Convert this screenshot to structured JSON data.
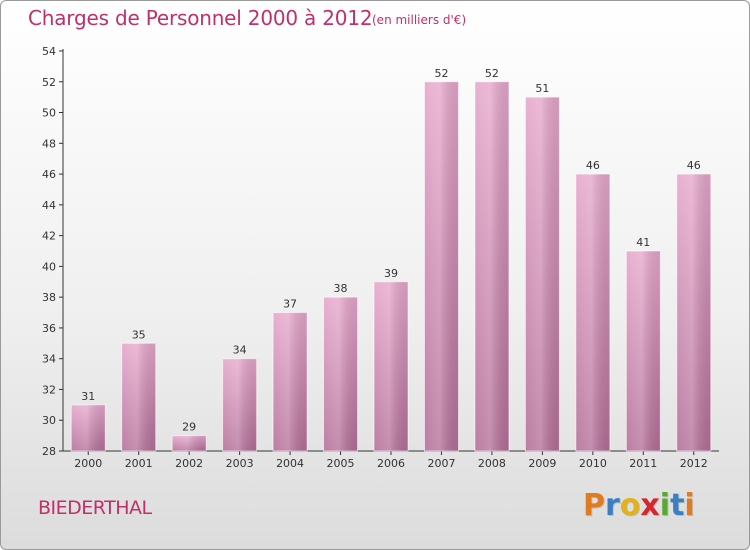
{
  "header": {
    "title": "Charges de Personnel 2000 à 2012",
    "unit": "(en milliers d'€)"
  },
  "footer": {
    "place": "BIEDERTHAL",
    "brand": "Proxiti",
    "brand_colors": [
      "#e07b1f",
      "#3a7fc4",
      "#e2b21c",
      "#d8262e",
      "#5aa832",
      "#3a7fc4",
      "#e07b1f"
    ]
  },
  "colors": {
    "bar_light": "#e6a7cb",
    "bar_dark": "#b46f98",
    "text": "#c0306a",
    "axis": "#333333"
  },
  "chart_data": {
    "type": "bar",
    "categories": [
      "2000",
      "2001",
      "2002",
      "2003",
      "2004",
      "2005",
      "2006",
      "2007",
      "2008",
      "2009",
      "2010",
      "2011",
      "2012"
    ],
    "values": [
      31,
      35,
      29,
      34,
      37,
      38,
      39,
      52,
      52,
      51,
      46,
      41,
      46
    ],
    "title": "Charges de Personnel 2000 à 2012",
    "xlabel": "",
    "ylabel": "",
    "ylim": [
      28,
      54
    ],
    "yticks": [
      28,
      30,
      32,
      34,
      36,
      38,
      40,
      42,
      44,
      46,
      48,
      50,
      52,
      54
    ],
    "grid": false,
    "legend": "none"
  }
}
